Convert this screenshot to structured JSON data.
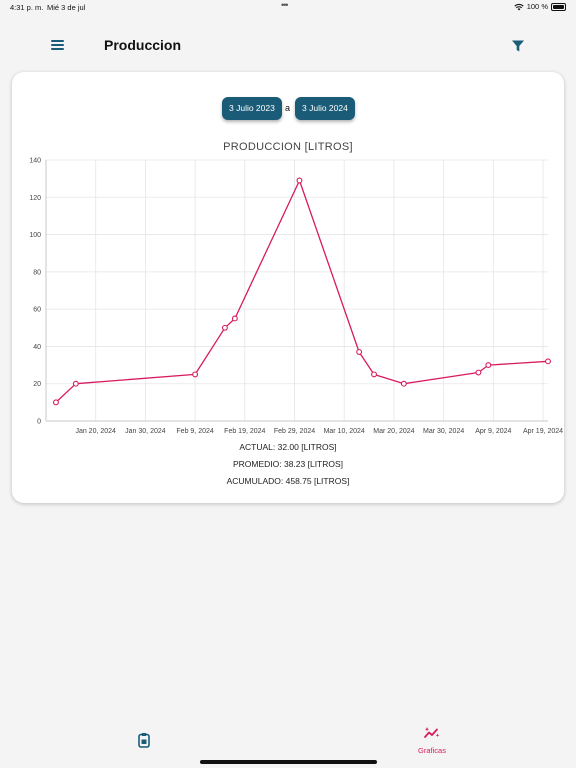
{
  "status_bar": {
    "time": "4:31 p. m.",
    "date": "Mié 3 de jul",
    "dots": "•••",
    "battery": "100 %"
  },
  "app_bar": {
    "title": "Produccion",
    "menu_icon": "hamburger-menu-icon",
    "filter_icon": "filter-icon"
  },
  "date_range": {
    "start": "3 Julio 2023",
    "separator": "a",
    "end": "3 Julio 2024"
  },
  "chart_data": {
    "type": "line",
    "title": "PRODUCCION [LITROS]",
    "xlabel": "",
    "ylabel": "",
    "ylim": [
      0,
      140
    ],
    "y_ticks": [
      0,
      20,
      40,
      60,
      80,
      100,
      120,
      140
    ],
    "x_range": [
      "2024-01-10",
      "2024-04-20"
    ],
    "x_ticks": [
      "2024-01-20",
      "2024-01-30",
      "2024-02-09",
      "2024-02-19",
      "2024-02-29",
      "2024-03-10",
      "2024-03-20",
      "2024-03-30",
      "2024-04-09",
      "2024-04-19"
    ],
    "x_tick_labels": [
      "Jan 20, 2024",
      "Jan 30, 2024",
      "Feb 9, 2024",
      "Feb 19, 2024",
      "Feb 29, 2024",
      "Mar 10, 2024",
      "Mar 20, 2024",
      "Mar 30, 2024",
      "Apr 9, 2024",
      "Apr 19, 2024"
    ],
    "grid": true,
    "series": [
      {
        "color": "#d81b60",
        "points": [
          {
            "x": "2024-01-12",
            "y": 10
          },
          {
            "x": "2024-01-16",
            "y": 20
          },
          {
            "x": "2024-02-09",
            "y": 25
          },
          {
            "x": "2024-02-15",
            "y": 50
          },
          {
            "x": "2024-02-17",
            "y": 55
          },
          {
            "x": "2024-03-01",
            "y": 129
          },
          {
            "x": "2024-03-13",
            "y": 37
          },
          {
            "x": "2024-03-16",
            "y": 25
          },
          {
            "x": "2024-03-22",
            "y": 20
          },
          {
            "x": "2024-04-06",
            "y": 26
          },
          {
            "x": "2024-04-08",
            "y": 30
          },
          {
            "x": "2024-04-20",
            "y": 32
          }
        ]
      }
    ]
  },
  "stats": {
    "actual": "ACTUAL: 32.00 [LITROS]",
    "promedio": "PROMEDIO: 38.23 [LITROS]",
    "acumulado": "ACUMULADO: 458.75 [LITROS]"
  },
  "bottom_nav": {
    "left_icon": "clipboard-icon",
    "right_icon": "sparkle-chart-icon",
    "right_label": "Graficas",
    "active_color": "#d81b60",
    "accent_color": "#1a5b78"
  }
}
